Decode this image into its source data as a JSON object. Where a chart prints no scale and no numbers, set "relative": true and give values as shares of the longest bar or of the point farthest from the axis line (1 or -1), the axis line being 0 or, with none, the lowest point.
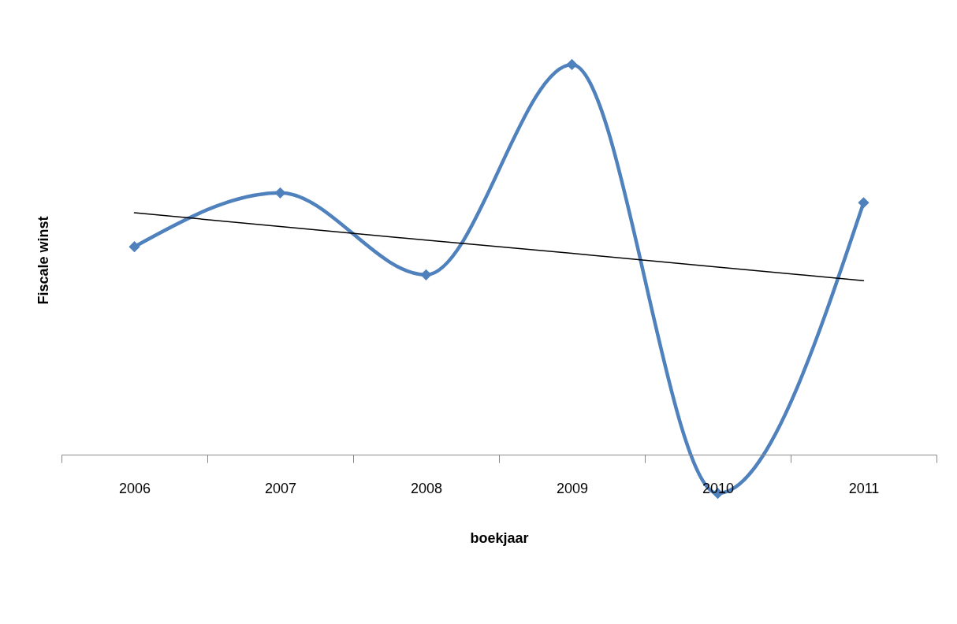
{
  "chart_data": {
    "type": "line",
    "relative": true,
    "xlabel": "boekjaar",
    "ylabel": "Fiscale winst",
    "categories": [
      "2006",
      "2007",
      "2008",
      "2009",
      "2010",
      "2011"
    ],
    "series": [
      {
        "color": "#4f81bd",
        "marker": "diamond",
        "values": [
          0.533,
          0.671,
          0.461,
          1,
          -0.099,
          0.646
        ]
      },
      {
        "type": "line",
        "color": "#000000",
        "marker": "none",
        "values": [
          0.62,
          0.585,
          0.55,
          0.516,
          0.481,
          0.446
        ]
      }
    ]
  }
}
